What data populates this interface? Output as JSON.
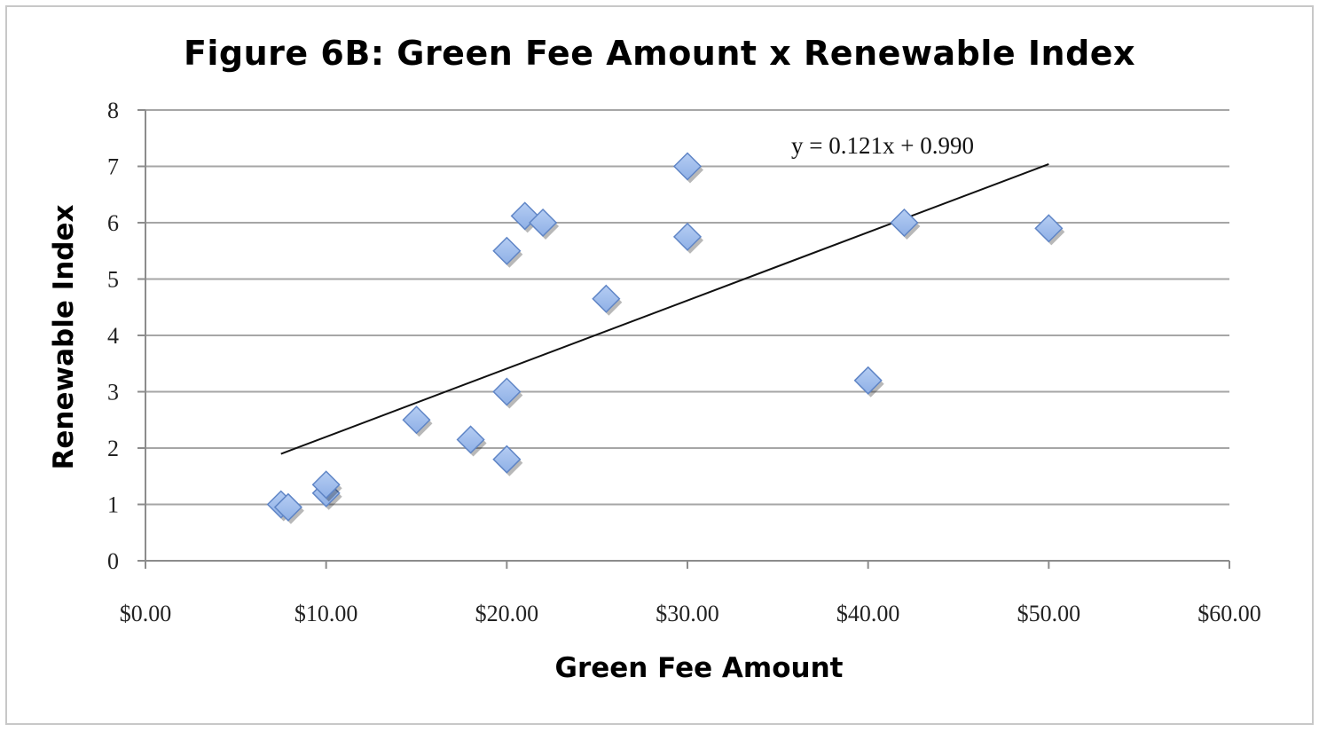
{
  "chart_data": {
    "type": "scatter",
    "title": "Figure 6B: Green Fee Amount x Renewable Index",
    "xlabel": "Green Fee Amount",
    "ylabel": "Renewable Index",
    "xlim": [
      0,
      60
    ],
    "ylim": [
      0,
      8
    ],
    "x_ticks": [
      0,
      10,
      20,
      30,
      40,
      50,
      60
    ],
    "x_tick_labels": [
      "$0.00",
      "$10.00",
      "$20.00",
      "$30.00",
      "$40.00",
      "$50.00",
      "$60.00"
    ],
    "y_ticks": [
      0,
      1,
      2,
      3,
      4,
      5,
      6,
      7,
      8
    ],
    "y_tick_labels": [
      "0",
      "1",
      "2",
      "3",
      "4",
      "5",
      "6",
      "7",
      "8"
    ],
    "grid": "horizontal",
    "marker_color": "#8fb0e6",
    "marker_edge_color": "#5f85c6",
    "points": [
      {
        "x": 7.5,
        "y": 1.0
      },
      {
        "x": 7.9,
        "y": 0.95
      },
      {
        "x": 10.0,
        "y": 1.2
      },
      {
        "x": 10.0,
        "y": 1.35
      },
      {
        "x": 15.0,
        "y": 2.5
      },
      {
        "x": 18.0,
        "y": 2.15
      },
      {
        "x": 20.0,
        "y": 1.8
      },
      {
        "x": 20.0,
        "y": 3.0
      },
      {
        "x": 20.0,
        "y": 5.5
      },
      {
        "x": 21.0,
        "y": 6.12
      },
      {
        "x": 22.0,
        "y": 6.0
      },
      {
        "x": 25.5,
        "y": 4.65
      },
      {
        "x": 30.0,
        "y": 7.0
      },
      {
        "x": 30.0,
        "y": 5.75
      },
      {
        "x": 40.0,
        "y": 3.2
      },
      {
        "x": 42.0,
        "y": 6.0
      },
      {
        "x": 50.0,
        "y": 5.9
      }
    ],
    "trendline": {
      "type": "linear",
      "slope": 0.121,
      "intercept": 0.99,
      "x_range": [
        7.5,
        50
      ],
      "equation_label": "y = 0.121x + 0.990"
    }
  }
}
